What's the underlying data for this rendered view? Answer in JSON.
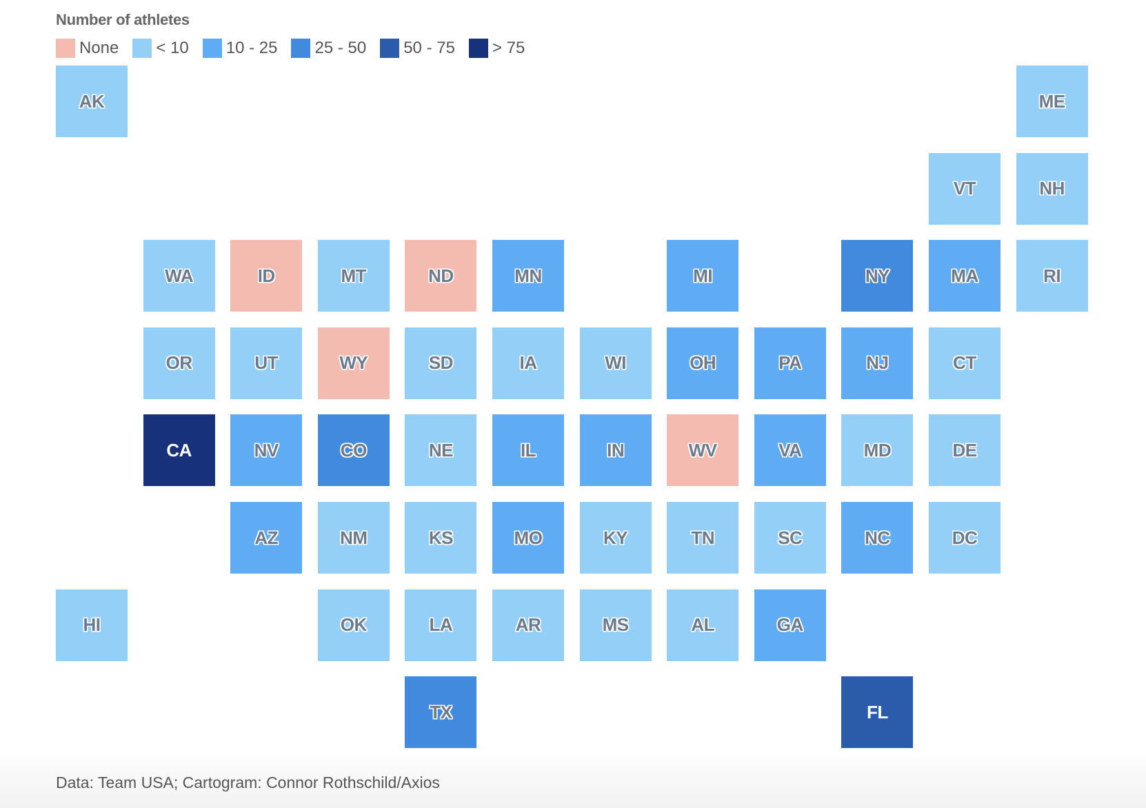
{
  "legend": {
    "title": "Number of athletes",
    "items": [
      {
        "label": "None",
        "color": "#f4bcb0"
      },
      {
        "label": "< 10",
        "color": "#94cff8"
      },
      {
        "label": "10 - 25",
        "color": "#5fabf4"
      },
      {
        "label": "25 - 50",
        "color": "#418ade"
      },
      {
        "label": "50 - 75",
        "color": "#2b5cab"
      },
      {
        "label": "> 75",
        "color": "#17317a"
      }
    ]
  },
  "source": "Data: Team USA; Cartogram: Connor Rothschild/Axios",
  "chart_data": {
    "type": "tile-grid-map",
    "value_label": "Number of athletes",
    "states": [
      {
        "state": "AK",
        "bin": "< 10",
        "col": 0,
        "row": 0
      },
      {
        "state": "ME",
        "bin": "< 10",
        "col": 11,
        "row": 0
      },
      {
        "state": "VT",
        "bin": "< 10",
        "col": 10,
        "row": 1
      },
      {
        "state": "NH",
        "bin": "< 10",
        "col": 11,
        "row": 1
      },
      {
        "state": "WA",
        "bin": "< 10",
        "col": 1,
        "row": 2
      },
      {
        "state": "ID",
        "bin": "None",
        "col": 2,
        "row": 2
      },
      {
        "state": "MT",
        "bin": "< 10",
        "col": 3,
        "row": 2
      },
      {
        "state": "ND",
        "bin": "None",
        "col": 4,
        "row": 2
      },
      {
        "state": "MN",
        "bin": "10 - 25",
        "col": 5,
        "row": 2
      },
      {
        "state": "MI",
        "bin": "10 - 25",
        "col": 7,
        "row": 2
      },
      {
        "state": "NY",
        "bin": "25 - 50",
        "col": 9,
        "row": 2
      },
      {
        "state": "MA",
        "bin": "10 - 25",
        "col": 10,
        "row": 2
      },
      {
        "state": "RI",
        "bin": "< 10",
        "col": 11,
        "row": 2
      },
      {
        "state": "OR",
        "bin": "< 10",
        "col": 1,
        "row": 3
      },
      {
        "state": "UT",
        "bin": "< 10",
        "col": 2,
        "row": 3
      },
      {
        "state": "WY",
        "bin": "None",
        "col": 3,
        "row": 3
      },
      {
        "state": "SD",
        "bin": "< 10",
        "col": 4,
        "row": 3
      },
      {
        "state": "IA",
        "bin": "< 10",
        "col": 5,
        "row": 3
      },
      {
        "state": "WI",
        "bin": "< 10",
        "col": 6,
        "row": 3
      },
      {
        "state": "OH",
        "bin": "10 - 25",
        "col": 7,
        "row": 3
      },
      {
        "state": "PA",
        "bin": "10 - 25",
        "col": 8,
        "row": 3
      },
      {
        "state": "NJ",
        "bin": "10 - 25",
        "col": 9,
        "row": 3
      },
      {
        "state": "CT",
        "bin": "< 10",
        "col": 10,
        "row": 3
      },
      {
        "state": "CA",
        "bin": "> 75",
        "col": 1,
        "row": 4
      },
      {
        "state": "NV",
        "bin": "10 - 25",
        "col": 2,
        "row": 4
      },
      {
        "state": "CO",
        "bin": "25 - 50",
        "col": 3,
        "row": 4
      },
      {
        "state": "NE",
        "bin": "< 10",
        "col": 4,
        "row": 4
      },
      {
        "state": "IL",
        "bin": "10 - 25",
        "col": 5,
        "row": 4
      },
      {
        "state": "IN",
        "bin": "10 - 25",
        "col": 6,
        "row": 4
      },
      {
        "state": "WV",
        "bin": "None",
        "col": 7,
        "row": 4
      },
      {
        "state": "VA",
        "bin": "10 - 25",
        "col": 8,
        "row": 4
      },
      {
        "state": "MD",
        "bin": "< 10",
        "col": 9,
        "row": 4
      },
      {
        "state": "DE",
        "bin": "< 10",
        "col": 10,
        "row": 4
      },
      {
        "state": "AZ",
        "bin": "10 - 25",
        "col": 2,
        "row": 5
      },
      {
        "state": "NM",
        "bin": "< 10",
        "col": 3,
        "row": 5
      },
      {
        "state": "KS",
        "bin": "< 10",
        "col": 4,
        "row": 5
      },
      {
        "state": "MO",
        "bin": "10 - 25",
        "col": 5,
        "row": 5
      },
      {
        "state": "KY",
        "bin": "< 10",
        "col": 6,
        "row": 5
      },
      {
        "state": "TN",
        "bin": "< 10",
        "col": 7,
        "row": 5
      },
      {
        "state": "SC",
        "bin": "< 10",
        "col": 8,
        "row": 5
      },
      {
        "state": "NC",
        "bin": "10 - 25",
        "col": 9,
        "row": 5
      },
      {
        "state": "DC",
        "bin": "< 10",
        "col": 10,
        "row": 5
      },
      {
        "state": "HI",
        "bin": "< 10",
        "col": 0,
        "row": 6
      },
      {
        "state": "OK",
        "bin": "< 10",
        "col": 3,
        "row": 6
      },
      {
        "state": "LA",
        "bin": "< 10",
        "col": 4,
        "row": 6
      },
      {
        "state": "AR",
        "bin": "< 10",
        "col": 5,
        "row": 6
      },
      {
        "state": "MS",
        "bin": "< 10",
        "col": 6,
        "row": 6
      },
      {
        "state": "AL",
        "bin": "< 10",
        "col": 7,
        "row": 6
      },
      {
        "state": "GA",
        "bin": "10 - 25",
        "col": 8,
        "row": 6
      },
      {
        "state": "TX",
        "bin": "25 - 50",
        "col": 4,
        "row": 7
      },
      {
        "state": "FL",
        "bin": "50 - 75",
        "col": 9,
        "row": 7
      }
    ]
  }
}
